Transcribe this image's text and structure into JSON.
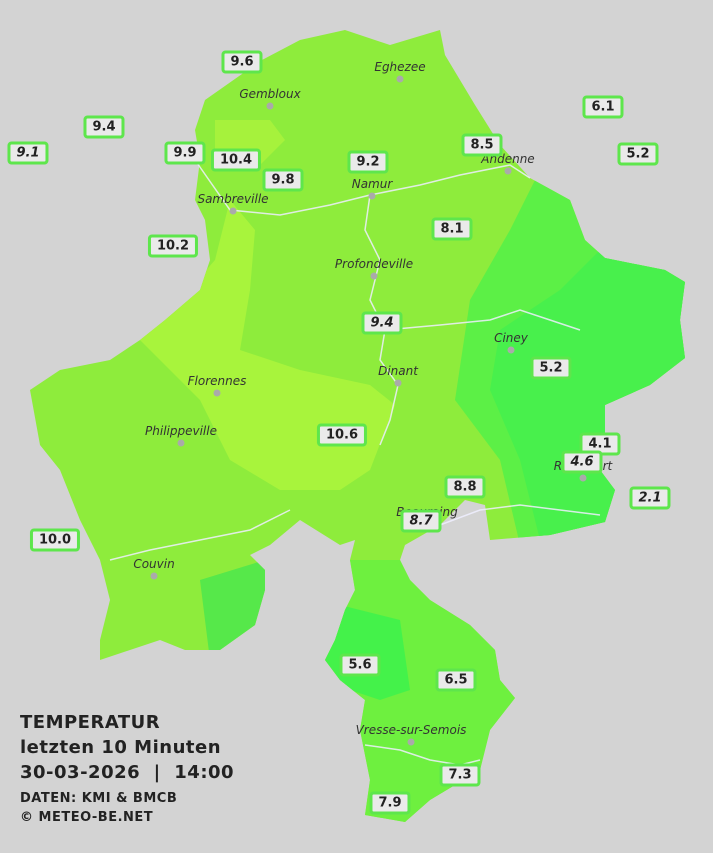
{
  "title": {
    "line1": "TEMPERATUR",
    "line2": "letzten 10 Minuten",
    "line3": "30-03-2026  |  14:00",
    "source": "DATEN: KMI & BMCB",
    "credit": "© METEO-BE.NET"
  },
  "cities": [
    "Eghezee",
    "Gembloux",
    "Andenne",
    "Namur",
    "Sambreville",
    "Profondeville",
    "Ciney",
    "Dinant",
    "Florennes",
    "Philippeville",
    "Rochefort",
    "Beauraing",
    "Couvin",
    "Vresse-sur-Semois"
  ],
  "stations": [
    "9.6",
    "9.4",
    "9.1",
    "9.9",
    "10.4",
    "9.8",
    "9.2",
    "8.5",
    "6.1",
    "5.2",
    "10.2",
    "8.1",
    "9.4",
    "5.2",
    "10.6",
    "4.1",
    "4.6",
    "2.1",
    "8.8",
    "8.7",
    "10.0",
    "5.6",
    "6.5",
    "7.3",
    "7.9"
  ]
}
